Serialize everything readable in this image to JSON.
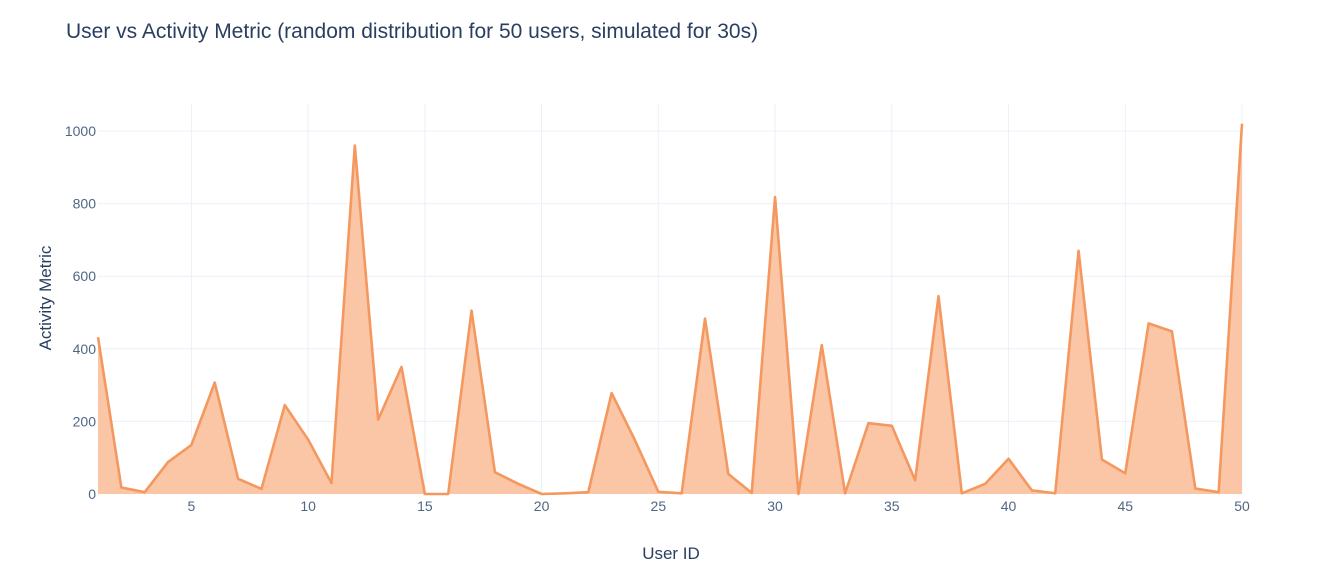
{
  "chart_data": {
    "type": "area",
    "title": "User vs Activity Metric (random distribution for 50 users, simulated for 30s)",
    "xlabel": "User ID",
    "ylabel": "Activity Metric",
    "x": [
      1,
      2,
      3,
      4,
      5,
      6,
      7,
      8,
      9,
      10,
      11,
      12,
      13,
      14,
      15,
      16,
      17,
      18,
      19,
      20,
      21,
      22,
      23,
      24,
      25,
      26,
      27,
      28,
      29,
      30,
      31,
      32,
      33,
      34,
      35,
      36,
      37,
      38,
      39,
      40,
      41,
      42,
      43,
      44,
      45,
      46,
      47,
      48,
      49,
      50
    ],
    "values": [
      432,
      18,
      5,
      88,
      135,
      307,
      42,
      14,
      245,
      150,
      30,
      960,
      205,
      350,
      0,
      0,
      505,
      60,
      28,
      0,
      2,
      5,
      278,
      148,
      6,
      2,
      483,
      55,
      3,
      818,
      0,
      410,
      2,
      195,
      188,
      38,
      545,
      2,
      28,
      97,
      10,
      2,
      670,
      95,
      57,
      470,
      448,
      15,
      5,
      1020
    ],
    "xlim": [
      1,
      50
    ],
    "ylim": [
      0,
      1020
    ],
    "x_ticks": [
      5,
      10,
      15,
      20,
      25,
      30,
      35,
      40,
      45,
      50
    ],
    "y_ticks": [
      0,
      200,
      400,
      600,
      800,
      1000
    ],
    "grid": true,
    "colors": {
      "line": "#f4985f",
      "fill": "#fac6a6",
      "grid": "#ebf0f8"
    }
  }
}
